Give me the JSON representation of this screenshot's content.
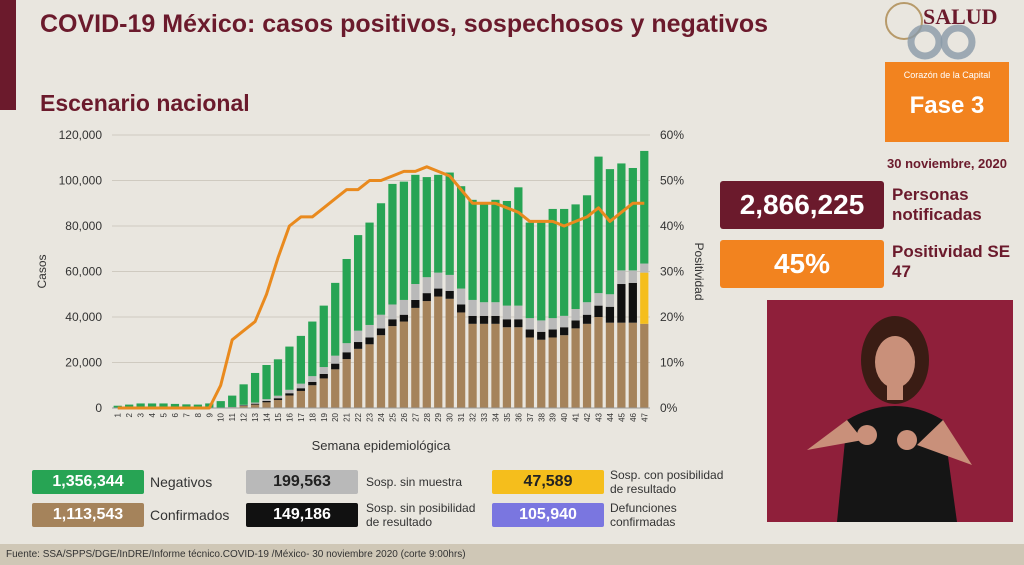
{
  "header": {
    "title": "COVID-19 México: casos positivos, sospechosos y negativos",
    "subtitle": "Escenario nacional"
  },
  "logo": {
    "text": "SALUD"
  },
  "phase": {
    "caption": "Corazón de la Capital",
    "label": "Fase 3"
  },
  "date": "30 noviembre, 2020",
  "stats": {
    "notified_value": "2,866,225",
    "notified_label": "Personas notificadas",
    "positivity_value": "45%",
    "positivity_label": "Positividad SE 47"
  },
  "legend": [
    {
      "value": "1,356,344",
      "label": "Negativos",
      "color": "#27a454",
      "text_color": "#ffffff"
    },
    {
      "value": "199,563",
      "label": "Sosp. sin muestra",
      "color": "#b9b9b9",
      "text_color": "#222222"
    },
    {
      "value": "47,589",
      "label": "Sosp. con posibilidad de resultado",
      "color": "#f5be1c",
      "text_color": "#222222"
    },
    {
      "value": "1,113,543",
      "label": "Confirmados",
      "color": "#a5835b",
      "text_color": "#ffffff"
    },
    {
      "value": "149,186",
      "label": "Sosp. sin posibilidad de resultado",
      "color": "#111111",
      "text_color": "#ffffff"
    },
    {
      "value": "105,940",
      "label": "Defunciones confirmadas",
      "color": "#7a76e0",
      "text_color": "#ffffff"
    }
  ],
  "footer": "Fuente: SSA/SPPS/DGE/InDRE/Informe técnico.COVID-19 /México- 30 noviembre 2020 (corte 9:00hrs)",
  "chart_data": {
    "type": "bar",
    "stacked": true,
    "xlabel": "Semana epidemiológica",
    "ylabel": "Casos",
    "y2label": "Positividad",
    "ylim": [
      0,
      120000
    ],
    "y2lim": [
      0,
      60
    ],
    "yticks": [
      "0",
      "20,000",
      "40,000",
      "60,000",
      "80,000",
      "100,000",
      "120,000"
    ],
    "y2ticks": [
      "0%",
      "10%",
      "20%",
      "30%",
      "40%",
      "50%",
      "60%"
    ],
    "categories": [
      "1",
      "2",
      "3",
      "4",
      "5",
      "6",
      "7",
      "8",
      "9",
      "10",
      "11",
      "12",
      "13",
      "14",
      "15",
      "16",
      "17",
      "18",
      "19",
      "20",
      "21",
      "22",
      "23",
      "24",
      "25",
      "26",
      "27",
      "28",
      "29",
      "30",
      "31",
      "32",
      "33",
      "34",
      "35",
      "36",
      "37",
      "38",
      "39",
      "40",
      "41",
      "42",
      "43",
      "44",
      "45",
      "46",
      "47"
    ],
    "series": [
      {
        "name": "Confirmados",
        "color": "#a5835b",
        "values": [
          0,
          0,
          0,
          0,
          0,
          0,
          0,
          0,
          10,
          30,
          300,
          900,
          1500,
          2500,
          3500,
          5500,
          7500,
          10000,
          13000,
          17000,
          21500,
          26000,
          28000,
          32000,
          36000,
          38000,
          44000,
          47000,
          49000,
          48000,
          42000,
          37000,
          37000,
          37000,
          35500,
          35500,
          31000,
          30000,
          31000,
          32000,
          35000,
          37000,
          40000,
          37500,
          37500,
          37500,
          37000
        ]
      },
      {
        "name": "Sosp. sin posibilidad de resultado",
        "color": "#111111",
        "values": [
          0,
          0,
          0,
          0,
          0,
          0,
          0,
          0,
          0,
          0,
          50,
          200,
          400,
          600,
          800,
          1000,
          1200,
          1500,
          2000,
          2500,
          3000,
          3000,
          3000,
          3000,
          3000,
          3000,
          3500,
          3500,
          3500,
          3500,
          3500,
          3500,
          3500,
          3500,
          3500,
          3500,
          3500,
          3500,
          3500,
          3500,
          3500,
          4000,
          5000,
          7000,
          17000,
          17500,
          0
        ]
      },
      {
        "name": "Sosp. con posibilidad de resultado",
        "color": "#f5be1c",
        "values": [
          0,
          0,
          0,
          0,
          0,
          0,
          0,
          0,
          0,
          0,
          0,
          0,
          0,
          0,
          0,
          0,
          0,
          0,
          0,
          0,
          0,
          0,
          0,
          0,
          0,
          0,
          0,
          0,
          0,
          0,
          0,
          0,
          0,
          0,
          0,
          0,
          0,
          0,
          0,
          0,
          0,
          0,
          0,
          0,
          0,
          0,
          22500
        ]
      },
      {
        "name": "Sosp. sin muestra",
        "color": "#b9b9b9",
        "values": [
          0,
          0,
          0,
          0,
          0,
          0,
          0,
          0,
          0,
          0,
          100,
          300,
          500,
          800,
          1100,
          1500,
          2000,
          2500,
          3000,
          3500,
          4000,
          5000,
          5500,
          6000,
          6500,
          6500,
          7000,
          7000,
          7000,
          7000,
          7000,
          7000,
          6000,
          6000,
          6000,
          6000,
          5000,
          5000,
          5000,
          5000,
          5000,
          5500,
          5500,
          5500,
          6000,
          5500,
          4000
        ]
      },
      {
        "name": "Negativos",
        "color": "#27a454",
        "values": [
          1000,
          1500,
          2000,
          2000,
          2000,
          1800,
          1600,
          1500,
          2000,
          3000,
          5000,
          9000,
          13000,
          15000,
          16000,
          19000,
          21000,
          24000,
          27000,
          32000,
          37000,
          42000,
          45000,
          49000,
          53000,
          52000,
          48000,
          44000,
          43000,
          45000,
          45000,
          44000,
          44000,
          45000,
          46000,
          52000,
          42000,
          43000,
          48000,
          47000,
          46000,
          47000,
          60000,
          55000,
          47000,
          45000,
          49500
        ]
      }
    ],
    "line": {
      "name": "Positividad",
      "color": "#e98a1e",
      "values": [
        0,
        0,
        0,
        0,
        0,
        0,
        0,
        0,
        0,
        5,
        15,
        17,
        19,
        25,
        33,
        40,
        42,
        42,
        44,
        46,
        48,
        48,
        50,
        50,
        51,
        52,
        52,
        53,
        52,
        51,
        48,
        45,
        45,
        45,
        44,
        43,
        41,
        41,
        41,
        40,
        41,
        42,
        44,
        41,
        43,
        45,
        45
      ]
    }
  }
}
